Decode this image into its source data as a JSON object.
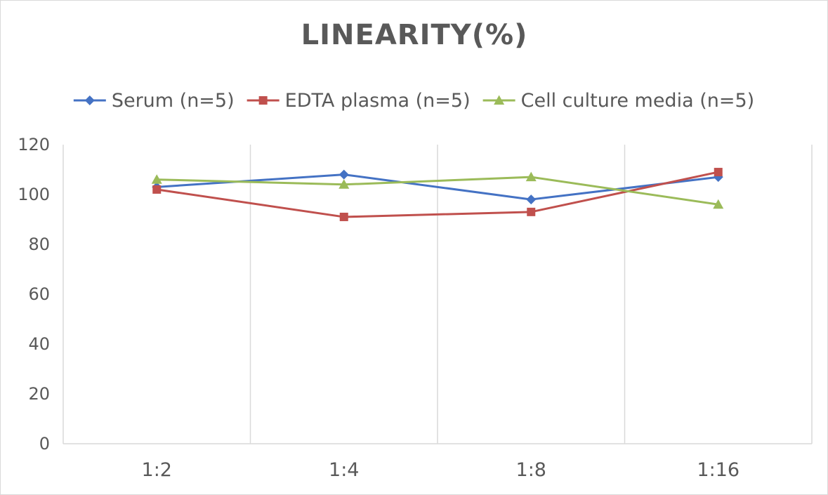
{
  "chart_data": {
    "type": "line",
    "title": "LINEARITY(%)",
    "xlabel": "",
    "ylabel": "",
    "categories": [
      "1:2",
      "1:4",
      "1:8",
      "1:16"
    ],
    "ylim": [
      0,
      120
    ],
    "yticks": [
      0,
      20,
      40,
      60,
      80,
      100,
      120
    ],
    "grid": "vertical",
    "legend_position": "top",
    "series": [
      {
        "name": "Serum (n=5)",
        "values": [
          103,
          108,
          98,
          107
        ],
        "color": "#4472c4",
        "marker": "diamond"
      },
      {
        "name": "EDTA plasma (n=5)",
        "values": [
          102,
          91,
          93,
          109
        ],
        "color": "#c0504d",
        "marker": "square"
      },
      {
        "name": "Cell culture media (n=5)",
        "values": [
          106,
          104,
          107,
          96
        ],
        "color": "#9bbb59",
        "marker": "triangle"
      }
    ]
  }
}
